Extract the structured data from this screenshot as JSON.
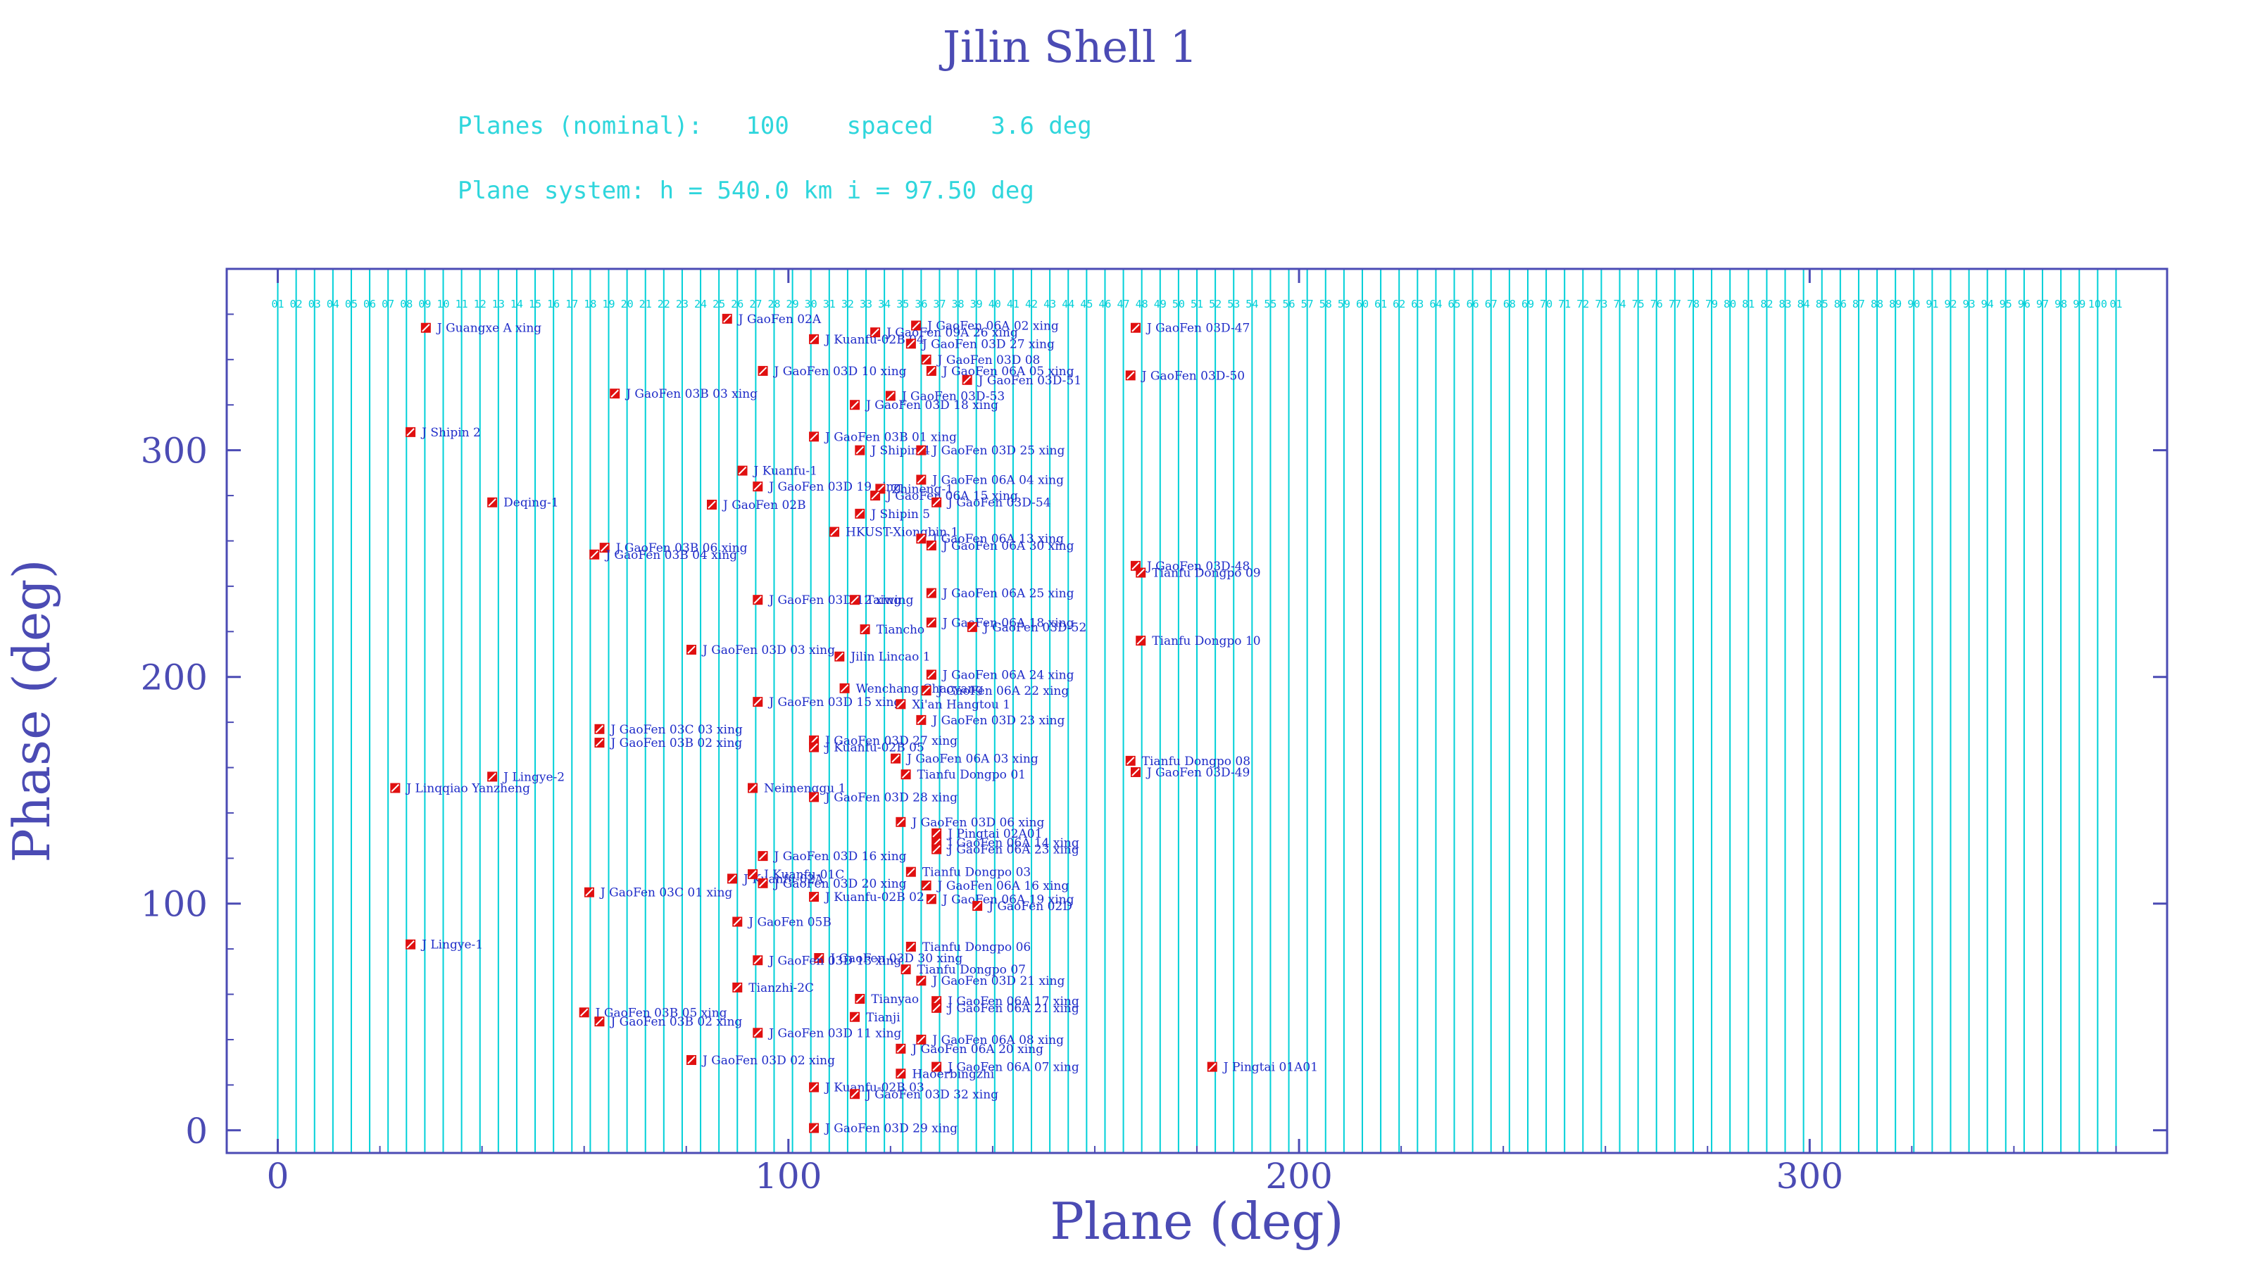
{
  "colors": {
    "axis": "#4b4bb4",
    "grid": "#00d0d8",
    "header": "#2fd6dc",
    "label": "#1f2cc8",
    "marker": "#e01010"
  },
  "header": {
    "line1": "Planes (nominal):   100    spaced    3.6 deg",
    "line2": "Plane system: h = 540.0 km  i = 97.50 deg"
  },
  "chart_data": {
    "type": "scatter",
    "title": "Jilin Shell 1",
    "xlabel": "Plane (deg)",
    "ylabel": "Phase (deg)",
    "xlim": [
      -10,
      370
    ],
    "ylim": [
      -10,
      380
    ],
    "xticks": [
      "0",
      "100",
      "200",
      "300"
    ],
    "yticks": [
      "0",
      "100",
      "200",
      "300"
    ],
    "grid": "vertical plane lines every 3.6 deg",
    "plane_labels": [
      "01",
      "02",
      "03",
      "04",
      "05",
      "06",
      "07",
      "08",
      "09",
      "10",
      "11",
      "12",
      "13",
      "14",
      "15",
      "16",
      "17",
      "18",
      "19",
      "20",
      "21",
      "22",
      "23",
      "24",
      "25",
      "26",
      "27",
      "28",
      "29",
      "30",
      "31",
      "32",
      "33",
      "34",
      "35",
      "36",
      "37",
      "38",
      "39",
      "40",
      "41",
      "42",
      "43",
      "44",
      "45",
      "46",
      "47",
      "48",
      "49",
      "50",
      "51",
      "52",
      "53",
      "54",
      "55",
      "56",
      "57",
      "58",
      "59",
      "60",
      "61",
      "62",
      "63",
      "64",
      "65",
      "66",
      "67",
      "68",
      "69",
      "70",
      "71",
      "72",
      "73",
      "74",
      "75",
      "76",
      "77",
      "78",
      "79",
      "80",
      "81",
      "82",
      "83",
      "84",
      "85",
      "86",
      "87",
      "88",
      "89",
      "90",
      "91",
      "92",
      "93",
      "94",
      "95",
      "96",
      "97",
      "98",
      "99",
      "100",
      "01"
    ],
    "points": [
      {
        "x": 29,
        "y": 354,
        "label": "J Guangxe A xing"
      },
      {
        "x": 88,
        "y": 358,
        "label": "J GaoFen 02A"
      },
      {
        "x": 125,
        "y": 355,
        "label": "J GaoFen 06A 02 xing"
      },
      {
        "x": 168,
        "y": 354,
        "label": "J GaoFen 03D-47"
      },
      {
        "x": 117,
        "y": 352,
        "label": "J GaoFen 09A 26 xing"
      },
      {
        "x": 105,
        "y": 349,
        "label": "J Kuanfu-02B 04"
      },
      {
        "x": 124,
        "y": 347,
        "label": "J GaoFen 03D 27 xing"
      },
      {
        "x": 127,
        "y": 340,
        "label": "J GaoFen 03D 08"
      },
      {
        "x": 95,
        "y": 335,
        "label": "J GaoFen 03D 10 xing"
      },
      {
        "x": 128,
        "y": 335,
        "label": "J GaoFen 06A 05 xing"
      },
      {
        "x": 135,
        "y": 331,
        "label": "J GaoFen 03D-51"
      },
      {
        "x": 167,
        "y": 333,
        "label": "J GaoFen 03D-50"
      },
      {
        "x": 66,
        "y": 325,
        "label": "J GaoFen 03B 03 xing"
      },
      {
        "x": 120,
        "y": 324,
        "label": "J GaoFen 03D-53"
      },
      {
        "x": 113,
        "y": 320,
        "label": "J GaoFen 03D 18 xing"
      },
      {
        "x": 26,
        "y": 308,
        "label": "J Shipin 2"
      },
      {
        "x": 105,
        "y": 306,
        "label": "J GaoFen 03B 01 xing"
      },
      {
        "x": 114,
        "y": 300,
        "label": "J Shipin 4"
      },
      {
        "x": 126,
        "y": 300,
        "label": "J GaoFen 03D 25 xing"
      },
      {
        "x": 91,
        "y": 291,
        "label": "J Kuanfu-1"
      },
      {
        "x": 126,
        "y": 287,
        "label": "J GaoFen 06A 04 xing"
      },
      {
        "x": 94,
        "y": 284,
        "label": "J GaoFen 03D 19 xing"
      },
      {
        "x": 118,
        "y": 283,
        "label": "Zhineng-1"
      },
      {
        "x": 117,
        "y": 280,
        "label": "J GaoFen 06A 15 xing"
      },
      {
        "x": 42,
        "y": 277,
        "label": "Deqing-1"
      },
      {
        "x": 85,
        "y": 276,
        "label": "J GaoFen 02B"
      },
      {
        "x": 129,
        "y": 277,
        "label": "J GaoFen 03D-54"
      },
      {
        "x": 114,
        "y": 272,
        "label": "J Shipin 5"
      },
      {
        "x": 109,
        "y": 264,
        "label": "HKUST-Xiongbin 1"
      },
      {
        "x": 126,
        "y": 261,
        "label": "J GaoFen 06A 13 xing"
      },
      {
        "x": 128,
        "y": 258,
        "label": "J GaoFen 06A 30 xing"
      },
      {
        "x": 64,
        "y": 257,
        "label": "J GaoFen 03B 06 xing"
      },
      {
        "x": 62,
        "y": 254,
        "label": "J GaoFen 03B 04 xing"
      },
      {
        "x": 168,
        "y": 249,
        "label": "J GaoFen 03D-48"
      },
      {
        "x": 169,
        "y": 246,
        "label": "Tianfu Dongpo 09"
      },
      {
        "x": 128,
        "y": 237,
        "label": "J GaoFen 06A 25 xing"
      },
      {
        "x": 94,
        "y": 234,
        "label": "J GaoFen 03D 12 xing"
      },
      {
        "x": 113,
        "y": 234,
        "label": "Taiwing"
      },
      {
        "x": 128,
        "y": 224,
        "label": "J GaoFen 06A 18 xing"
      },
      {
        "x": 136,
        "y": 222,
        "label": "J GaoFen 03D-52"
      },
      {
        "x": 115,
        "y": 221,
        "label": "Tiancho"
      },
      {
        "x": 169,
        "y": 216,
        "label": "Tianfu Dongpo 10"
      },
      {
        "x": 81,
        "y": 212,
        "label": "J GaoFen 03D 03 xing"
      },
      {
        "x": 110,
        "y": 209,
        "label": "Jilin Lincao 1"
      },
      {
        "x": 128,
        "y": 201,
        "label": "J GaoFen 06A 24 xing"
      },
      {
        "x": 111,
        "y": 195,
        "label": "Wenchang Chaoyang"
      },
      {
        "x": 127,
        "y": 194,
        "label": "J GaoFen 06A 22 xing"
      },
      {
        "x": 94,
        "y": 189,
        "label": "J GaoFen 03D 15 xing"
      },
      {
        "x": 122,
        "y": 188,
        "label": "Xi'an Hangtou 1"
      },
      {
        "x": 126,
        "y": 181,
        "label": "J GaoFen 03D 23 xing"
      },
      {
        "x": 63,
        "y": 177,
        "label": "J GaoFen 03C 03 xing"
      },
      {
        "x": 63,
        "y": 171,
        "label": "J GaoFen 03B 02 xing"
      },
      {
        "x": 105,
        "y": 172,
        "label": "J GaoFen 03D 27 xing"
      },
      {
        "x": 105,
        "y": 169,
        "label": "J Kuanfu-02B 05"
      },
      {
        "x": 121,
        "y": 164,
        "label": "J GaoFen 06A 03 xing"
      },
      {
        "x": 167,
        "y": 163,
        "label": "Tianfu Dongpo 08"
      },
      {
        "x": 168,
        "y": 158,
        "label": "J GaoFen 03D-49"
      },
      {
        "x": 123,
        "y": 157,
        "label": "Tianfu Dongpo 01"
      },
      {
        "x": 42,
        "y": 156,
        "label": "J Lingye-2"
      },
      {
        "x": 23,
        "y": 151,
        "label": "J Linqqiao Yanzheng"
      },
      {
        "x": 93,
        "y": 151,
        "label": "Neimenggu 1"
      },
      {
        "x": 105,
        "y": 147,
        "label": "J GaoFen 03D 28 xing"
      },
      {
        "x": 122,
        "y": 136,
        "label": "J GaoFen 03D 06 xing"
      },
      {
        "x": 129,
        "y": 131,
        "label": "J Pingtai 02A01"
      },
      {
        "x": 129,
        "y": 127,
        "label": "J GaoFen 06A 14 xing"
      },
      {
        "x": 129,
        "y": 124,
        "label": "J GaoFen 06A 23 xing"
      },
      {
        "x": 95,
        "y": 121,
        "label": "J GaoFen 03D 16 xing"
      },
      {
        "x": 124,
        "y": 114,
        "label": "Tianfu Dongpo 03"
      },
      {
        "x": 89,
        "y": 111,
        "label": "J Kuanfu-02A"
      },
      {
        "x": 93,
        "y": 113,
        "label": "J Kuanfu-01C"
      },
      {
        "x": 95,
        "y": 109,
        "label": "J GaoFen 03D 20 xing"
      },
      {
        "x": 127,
        "y": 108,
        "label": "J GaoFen 06A 16 xing"
      },
      {
        "x": 61,
        "y": 105,
        "label": "J GaoFen 03C 01 xing"
      },
      {
        "x": 105,
        "y": 103,
        "label": "J Kuanfu-02B 02"
      },
      {
        "x": 128,
        "y": 102,
        "label": "J GaoFen 06A 19 xing"
      },
      {
        "x": 137,
        "y": 99,
        "label": "J GaoFen 02D"
      },
      {
        "x": 90,
        "y": 92,
        "label": "J GaoFen 05B"
      },
      {
        "x": 124,
        "y": 81,
        "label": "Tianfu Dongpo 06"
      },
      {
        "x": 26,
        "y": 82,
        "label": "J Lingye-1"
      },
      {
        "x": 106,
        "y": 76,
        "label": "J GaoFen 03D 30 xing"
      },
      {
        "x": 94,
        "y": 75,
        "label": "J GaoFen 03D 13 xing"
      },
      {
        "x": 123,
        "y": 71,
        "label": "Tianfu Dongpo 07"
      },
      {
        "x": 126,
        "y": 66,
        "label": "J GaoFen 03D 21 xing"
      },
      {
        "x": 90,
        "y": 63,
        "label": "Tianzhi-2C"
      },
      {
        "x": 114,
        "y": 58,
        "label": "Tianyao"
      },
      {
        "x": 129,
        "y": 57,
        "label": "J GaoFen 06A 17 xing"
      },
      {
        "x": 129,
        "y": 54,
        "label": "J GaoFen 06A 21 xing"
      },
      {
        "x": 60,
        "y": 52,
        "label": "J GaoFen 03B 05 xing"
      },
      {
        "x": 113,
        "y": 50,
        "label": "Tianji"
      },
      {
        "x": 63,
        "y": 48,
        "label": "J GaoFen 03B 02 xing"
      },
      {
        "x": 94,
        "y": 43,
        "label": "J GaoFen 03D 11 xing"
      },
      {
        "x": 126,
        "y": 40,
        "label": "J GaoFen 06A 08 xing"
      },
      {
        "x": 122,
        "y": 36,
        "label": "J GaoFen 06A 20 xing"
      },
      {
        "x": 81,
        "y": 31,
        "label": "J GaoFen 03D 02 xing"
      },
      {
        "x": 183,
        "y": 28,
        "label": "J Pingtai 01A01"
      },
      {
        "x": 129,
        "y": 28,
        "label": "J GaoFen 06A 07 xing"
      },
      {
        "x": 122,
        "y": 25,
        "label": "Haoerbingzhi"
      },
      {
        "x": 105,
        "y": 19,
        "label": "J Kuanfu-02B 03"
      },
      {
        "x": 113,
        "y": 16,
        "label": "J GaoFen 03D 32 xing"
      },
      {
        "x": 105,
        "y": 1,
        "label": "J GaoFen 03D 29 xing"
      }
    ]
  }
}
